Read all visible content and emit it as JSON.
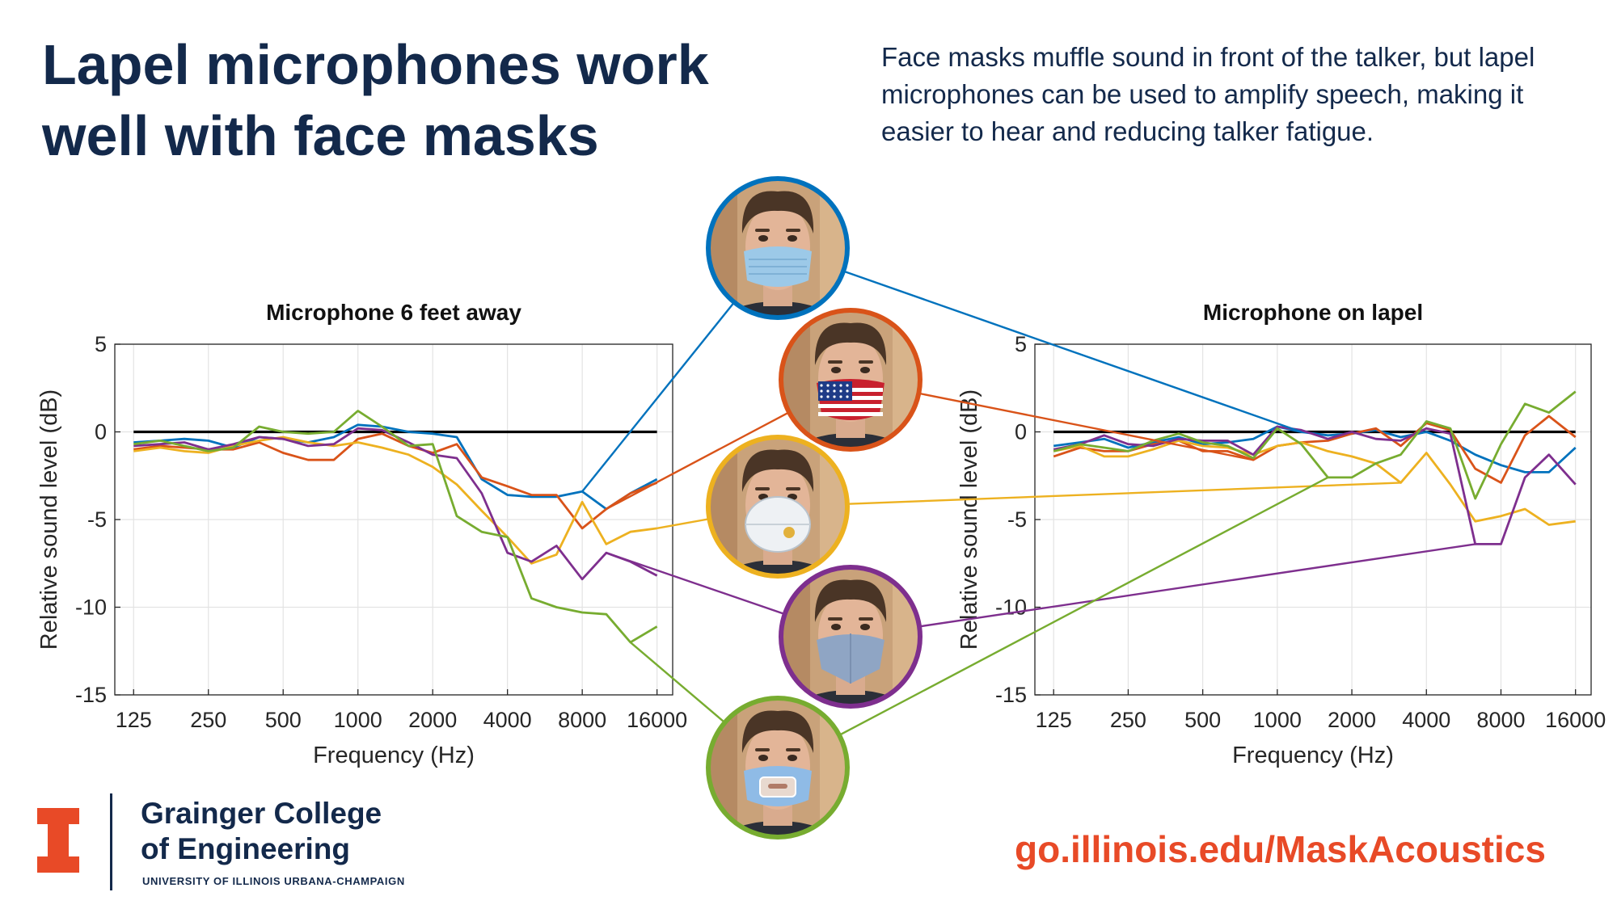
{
  "header": {
    "title": "Lapel microphones work well with face masks",
    "description": "Face masks muffle sound in front of the talker, but lapel microphones can be used to amplify speech, making it easier to hear and reducing talker fatigue."
  },
  "footer": {
    "college_line1": "Grainger College",
    "college_line2": "of Engineering",
    "university": "UNIVERSITY OF ILLINOIS URBANA-CHAMPAIGN",
    "link": "go.illinois.edu/MaskAcoustics"
  },
  "colors": {
    "navy": "#13294B",
    "orange": "#E84A27",
    "reference": "#000000"
  },
  "masks": [
    {
      "icon": "surgical-mask-portrait-icon",
      "color": "#0072BD"
    },
    {
      "icon": "flag-cloth-mask-portrait-icon",
      "color": "#D95319"
    },
    {
      "icon": "n95-respirator-portrait-icon",
      "color": "#EDB120"
    },
    {
      "icon": "denim-cloth-mask-portrait-icon",
      "color": "#7E2F8E"
    },
    {
      "icon": "clear-window-mask-portrait-icon",
      "color": "#77AC30"
    }
  ],
  "chart_data": [
    {
      "type": "line",
      "title": "Microphone 6 feet away",
      "xlabel": "Frequency (Hz)",
      "ylabel": "Relative sound level (dB)",
      "x_scale": "log",
      "xlim": [
        105,
        18500
      ],
      "ylim": [
        -15,
        5
      ],
      "x_ticks": [
        125,
        250,
        500,
        1000,
        2000,
        4000,
        8000,
        16000
      ],
      "x_tick_labels": [
        "125",
        "250",
        "500",
        "1000",
        "2000",
        "4000",
        "8000",
        "16000"
      ],
      "y_ticks": [
        5,
        0,
        -5,
        -10,
        -15
      ],
      "y_tick_labels": [
        "5",
        "0",
        "-5",
        "-10",
        "-15"
      ],
      "grid": true,
      "x": [
        125,
        160,
        200,
        250,
        315,
        400,
        500,
        630,
        800,
        1000,
        1250,
        1600,
        2000,
        2500,
        3150,
        4000,
        5000,
        6300,
        8000,
        10000,
        12500,
        16000
      ],
      "reference": [
        0,
        0,
        0,
        0,
        0,
        0,
        0,
        0,
        0,
        0,
        0,
        0,
        0,
        0,
        0,
        0,
        0,
        0,
        0,
        0,
        0,
        0
      ],
      "series": [
        {
          "values": [
            -0.6,
            -0.5,
            -0.4,
            -0.5,
            -0.9,
            -0.3,
            -0.4,
            -0.6,
            -0.3,
            0.4,
            0.3,
            0.0,
            -0.1,
            -0.3,
            -2.7,
            -3.6,
            -3.7,
            -3.7,
            -3.4,
            -4.4,
            -3.5,
            -2.7
          ]
        },
        {
          "values": [
            -1.0,
            -0.8,
            -0.9,
            -1.0,
            -1.0,
            -0.6,
            -1.2,
            -1.6,
            -1.6,
            -0.4,
            -0.1,
            -0.8,
            -1.2,
            -0.7,
            -2.6,
            -3.1,
            -3.6,
            -3.6,
            -5.5,
            -4.4,
            -3.5,
            -2.9
          ]
        },
        {
          "values": [
            -1.1,
            -0.9,
            -1.1,
            -1.2,
            -0.8,
            -0.5,
            -0.3,
            -0.6,
            -0.8,
            -0.6,
            -0.9,
            -1.3,
            -2.0,
            -3.0,
            -4.5,
            -6.0,
            -7.5,
            -7.0,
            -4.0,
            -6.4,
            -5.7,
            -5.5
          ]
        },
        {
          "values": [
            -0.8,
            -0.7,
            -0.6,
            -1.0,
            -0.7,
            -0.3,
            -0.4,
            -0.8,
            -0.7,
            0.2,
            0.1,
            -0.6,
            -1.3,
            -1.5,
            -3.5,
            -6.9,
            -7.4,
            -6.5,
            -8.4,
            -6.9,
            -7.4,
            -8.2
          ]
        },
        {
          "values": [
            -0.7,
            -0.5,
            -0.8,
            -1.1,
            -0.9,
            0.3,
            0.0,
            -0.1,
            0.0,
            1.2,
            0.3,
            -0.8,
            -0.7,
            -4.8,
            -5.7,
            -6.0,
            -9.5,
            -10.0,
            -10.3,
            -10.4,
            -12.0,
            -11.1
          ]
        }
      ]
    },
    {
      "type": "line",
      "title": "Microphone on lapel",
      "xlabel": "Frequency (Hz)",
      "ylabel": "Relative sound level (dB)",
      "x_scale": "log",
      "xlim": [
        105,
        18500
      ],
      "ylim": [
        -15,
        5
      ],
      "x_ticks": [
        125,
        250,
        500,
        1000,
        2000,
        4000,
        8000,
        16000
      ],
      "x_tick_labels": [
        "125",
        "250",
        "500",
        "1000",
        "2000",
        "4000",
        "8000",
        "16000"
      ],
      "y_ticks": [
        5,
        0,
        -5,
        -10,
        -15
      ],
      "y_tick_labels": [
        "5",
        "0",
        "-5",
        "-10",
        "-15"
      ],
      "grid": true,
      "x": [
        125,
        160,
        200,
        250,
        315,
        400,
        500,
        630,
        800,
        1000,
        1250,
        1600,
        2000,
        2500,
        3150,
        4000,
        5000,
        6300,
        8000,
        10000,
        12500,
        16000
      ],
      "reference": [
        0,
        0,
        0,
        0,
        0,
        0,
        0,
        0,
        0,
        0,
        0,
        0,
        0,
        0,
        0,
        0,
        0,
        0,
        0,
        0,
        0,
        0
      ],
      "series": [
        {
          "values": [
            -0.8,
            -0.6,
            -0.4,
            -0.9,
            -0.6,
            -0.3,
            -0.7,
            -0.6,
            -0.4,
            0.3,
            0.0,
            -0.2,
            -0.1,
            0.1,
            -0.3,
            0.0,
            -0.5,
            -1.3,
            -1.9,
            -2.3,
            -2.3,
            -0.9
          ]
        },
        {
          "values": [
            -1.4,
            -0.9,
            -1.1,
            -1.1,
            -0.7,
            -0.5,
            -1.1,
            -1.1,
            -1.6,
            -0.8,
            -0.6,
            -0.5,
            -0.1,
            0.2,
            -0.8,
            0.5,
            0.1,
            -2.1,
            -2.9,
            -0.2,
            0.9,
            -0.3
          ]
        },
        {
          "values": [
            -1.1,
            -0.8,
            -1.4,
            -1.4,
            -1.0,
            -0.5,
            -0.8,
            -0.9,
            -1.3,
            -0.8,
            -0.6,
            -1.1,
            -1.4,
            -1.8,
            -2.9,
            -1.2,
            -3.0,
            -5.1,
            -4.8,
            -4.4,
            -5.3,
            -5.1
          ]
        },
        {
          "values": [
            -1.0,
            -0.7,
            -0.2,
            -0.7,
            -0.8,
            -0.4,
            -0.5,
            -0.5,
            -1.3,
            0.3,
            0.1,
            -0.4,
            0.0,
            -0.4,
            -0.5,
            0.2,
            -0.1,
            -6.4,
            -6.4,
            -2.6,
            -1.3,
            -3.0
          ]
        },
        {
          "values": [
            -1.1,
            -0.7,
            -0.9,
            -1.1,
            -0.5,
            -0.1,
            -0.6,
            -0.8,
            -1.5,
            0.2,
            -0.7,
            -2.6,
            -2.6,
            -1.8,
            -1.3,
            0.6,
            0.2,
            -3.8,
            -0.7,
            1.6,
            1.1,
            2.3
          ]
        }
      ]
    }
  ]
}
